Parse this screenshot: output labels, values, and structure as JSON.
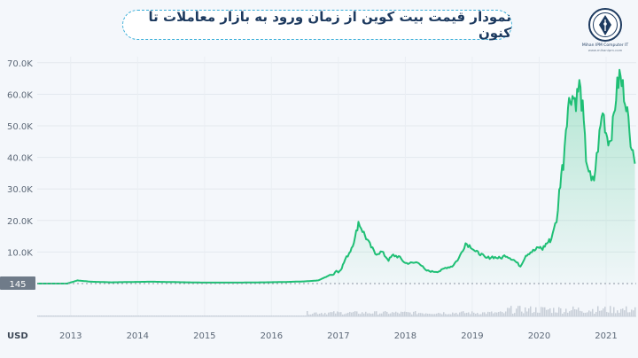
{
  "header": {
    "title": "نمودار قیمت بیت کوین از زمان ورود به بازار معاملات تا کنون"
  },
  "logo": {
    "name": "Mihan IPM Computer IT",
    "tagline": "www.mihanipm.com"
  },
  "colors": {
    "line": "#1fbf75",
    "area_top": "#1fbf75",
    "background": "#f4f7fb",
    "title_border": "#3aaed8",
    "title_text": "#1d3a5f"
  },
  "chart_data": {
    "type": "area",
    "currency_label": "USD",
    "last_price_label": "145",
    "y_ticks": [
      "10.0K",
      "20.0K",
      "30.0K",
      "40.0K",
      "50.0K",
      "60.0K",
      "70.0K"
    ],
    "y_tick_values": [
      10000,
      20000,
      30000,
      40000,
      50000,
      60000,
      70000
    ],
    "ylim": [
      0,
      72000
    ],
    "x_ticks": [
      "2013",
      "2014",
      "2015",
      "2016",
      "2017",
      "2018",
      "2019",
      "2020",
      "2021"
    ],
    "x_tick_values": [
      2013,
      2014,
      2015,
      2016,
      2017,
      2018,
      2019,
      2020,
      2021
    ],
    "xlim": [
      2012.5,
      2021.45
    ],
    "grid": true,
    "series": [
      {
        "x": [
          2012.5,
          2012.8,
          2012.95,
          2013.1,
          2013.3,
          2013.6,
          2013.9,
          2014.2,
          2014.6,
          2015.0,
          2015.5,
          2015.9,
          2016.2,
          2016.5,
          2016.7,
          2016.85,
          2016.93,
          2016.97,
          2017.0,
          2017.05,
          2017.1,
          2017.18,
          2017.25,
          2017.3,
          2017.38,
          2017.45,
          2017.55,
          2017.65,
          2017.75,
          2017.82,
          2017.9,
          2018.0,
          2018.1,
          2018.2,
          2018.3,
          2018.4,
          2018.48,
          2018.52,
          2018.6,
          2018.7,
          2018.8,
          2018.9,
          2019.0,
          2019.05,
          2019.12,
          2019.2,
          2019.3,
          2019.42,
          2019.5,
          2019.62,
          2019.72,
          2019.8,
          2019.87,
          2019.93,
          2020.0,
          2020.05,
          2020.1,
          2020.15,
          2020.18,
          2020.22,
          2020.26,
          2020.3,
          2020.33,
          2020.36,
          2020.4,
          2020.43,
          2020.48,
          2020.55,
          2020.6,
          2020.65,
          2020.7,
          2020.74,
          2020.78,
          2020.82,
          2020.86,
          2020.9,
          2020.95,
          2021.0,
          2021.05,
          2021.1,
          2021.15,
          2021.2,
          2021.25,
          2021.3,
          2021.35,
          2021.4,
          2021.43
        ],
        "values": [
          13,
          13,
          13,
          1000,
          600,
          400,
          500,
          600,
          450,
          300,
          300,
          400,
          500,
          700,
          1000,
          2500,
          3000,
          4200,
          3500,
          5000,
          7500,
          10500,
          14500,
          19500,
          16000,
          13000,
          9500,
          10000,
          7500,
          9000,
          8500,
          6500,
          6500,
          6800,
          4200,
          3800,
          3800,
          4000,
          5000,
          5500,
          8000,
          12800,
          11500,
          10000,
          9500,
          8000,
          8500,
          8000,
          9000,
          7500,
          5500,
          9000,
          10000,
          10500,
          11500,
          11000,
          12500,
          13500,
          14000,
          18000,
          19000,
          29000,
          35000,
          38000,
          50000,
          56000,
          60000,
          58000,
          63000,
          55000,
          40000,
          36000,
          32000,
          33000,
          40000,
          47000,
          55000,
          48000,
          45000,
          50000,
          60000,
          66000,
          62000,
          58000,
          47000,
          44000,
          38000
        ]
      }
    ]
  }
}
